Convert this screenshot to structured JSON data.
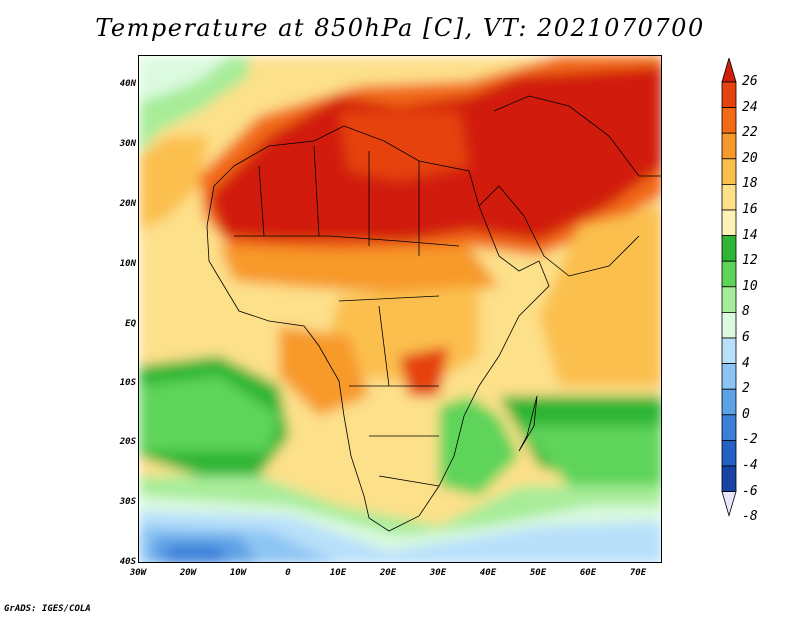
{
  "title": "Temperature at 850hPa [C], VT: 2021070700",
  "footer": "GrADS: IGES/COLA",
  "map": {
    "lat_labels": [
      "40N",
      "30N",
      "20N",
      "10N",
      "EQ",
      "10S",
      "20S",
      "30S",
      "40S"
    ],
    "lon_labels": [
      "30W",
      "20W",
      "10W",
      "0",
      "10E",
      "20E",
      "30E",
      "40E",
      "50E",
      "60E",
      "70E"
    ]
  },
  "colorbar": {
    "labels": [
      "26",
      "24",
      "22",
      "20",
      "18",
      "16",
      "14",
      "12",
      "10",
      "8",
      "6",
      "4",
      "2",
      "0",
      "-2",
      "-4",
      "-6",
      "-8"
    ],
    "colors": [
      "#d11f0b",
      "#e5430f",
      "#f26b16",
      "#f79a2b",
      "#fbbf4e",
      "#fde08a",
      "#fdf3b6",
      "#2fb536",
      "#5fd45a",
      "#a7ec98",
      "#dbfae0",
      "#b8e0fb",
      "#8cc5f3",
      "#5ea2e6",
      "#3b7fd8",
      "#2361c4",
      "#1643a4",
      "#0c2277"
    ]
  }
}
